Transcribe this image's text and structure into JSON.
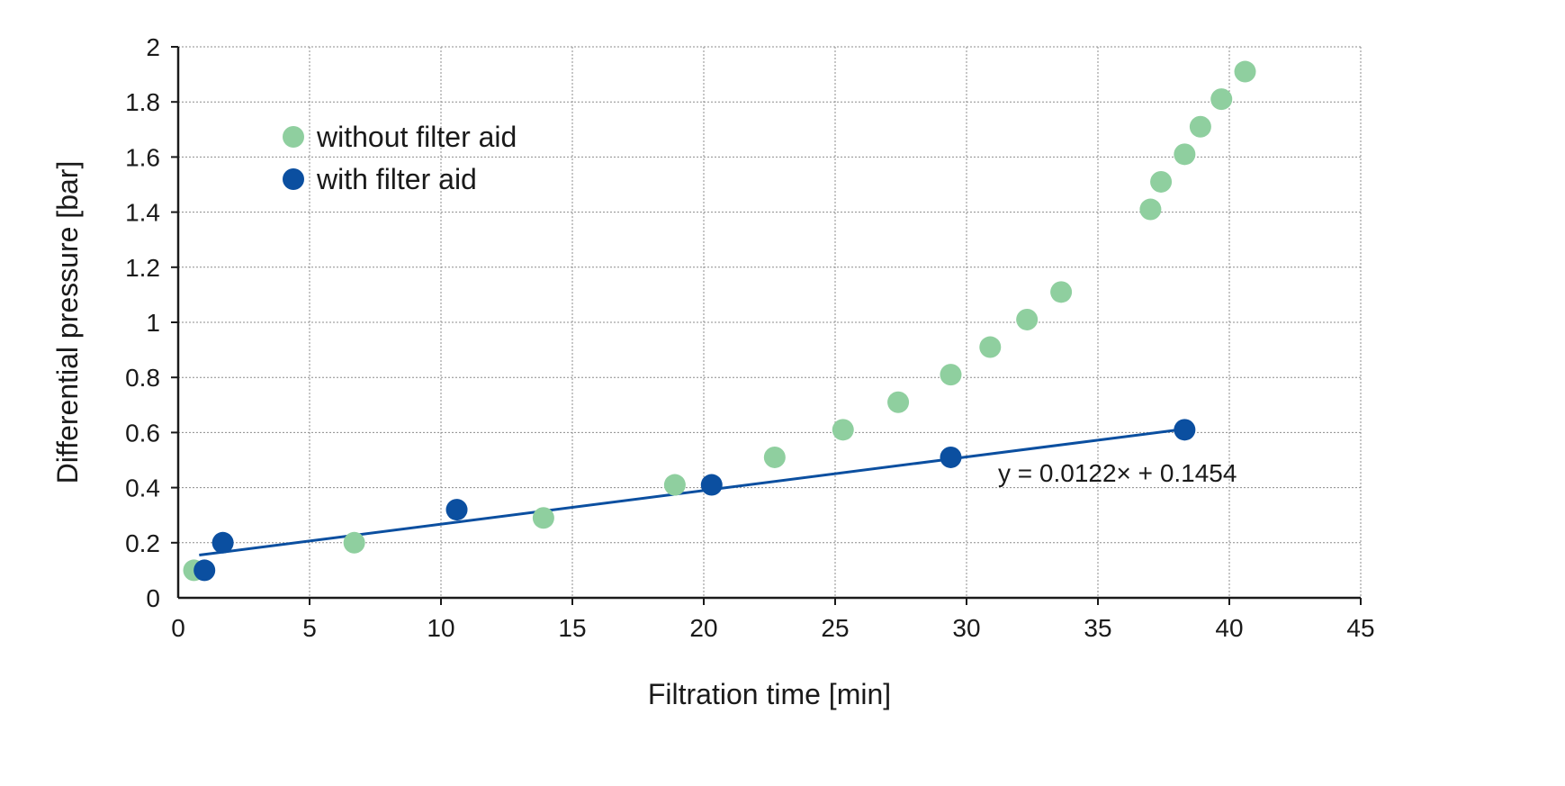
{
  "chart_data": {
    "type": "scatter",
    "title": "",
    "xlabel": "Filtration time [min]",
    "ylabel": "Differential pressure [bar]",
    "xlim": [
      0,
      45
    ],
    "ylim": [
      0,
      2
    ],
    "x_ticks": [
      0,
      5,
      10,
      15,
      20,
      25,
      30,
      35,
      40,
      45
    ],
    "y_ticks": [
      0,
      0.2,
      0.4,
      0.6,
      0.8,
      1,
      1.2,
      1.4,
      1.6,
      1.8,
      2
    ],
    "y_tick_labels": [
      "0",
      "0.2",
      "0.4",
      "0.6",
      "0.8",
      "1",
      "1.2",
      "1.4",
      "1.6",
      "1.8",
      "2"
    ],
    "grid": true,
    "legend_position": "top-left",
    "series": [
      {
        "name": "without filter aid",
        "color": "#8fcf9f",
        "x": [
          0.6,
          6.7,
          13.9,
          18.9,
          22.7,
          25.3,
          27.4,
          29.4,
          30.9,
          32.3,
          33.6,
          37.0,
          37.4,
          38.3,
          38.9,
          39.7,
          40.6
        ],
        "y": [
          0.1,
          0.2,
          0.29,
          0.41,
          0.51,
          0.61,
          0.71,
          0.81,
          0.91,
          1.01,
          1.11,
          1.41,
          1.51,
          1.61,
          1.71,
          1.81,
          1.91
        ]
      },
      {
        "name": "with filter aid",
        "color": "#0b4fa0",
        "x": [
          1.0,
          1.7,
          10.6,
          20.3,
          29.4,
          38.3
        ],
        "y": [
          0.1,
          0.2,
          0.32,
          0.41,
          0.51,
          0.61
        ]
      }
    ],
    "trendline": {
      "series": "with filter aid",
      "slope": 0.0122,
      "intercept": 0.1454,
      "x_range": [
        0.8,
        38.3
      ],
      "color": "#0b4fa0",
      "equation": "y = 0.0122× + 0.1454"
    }
  }
}
